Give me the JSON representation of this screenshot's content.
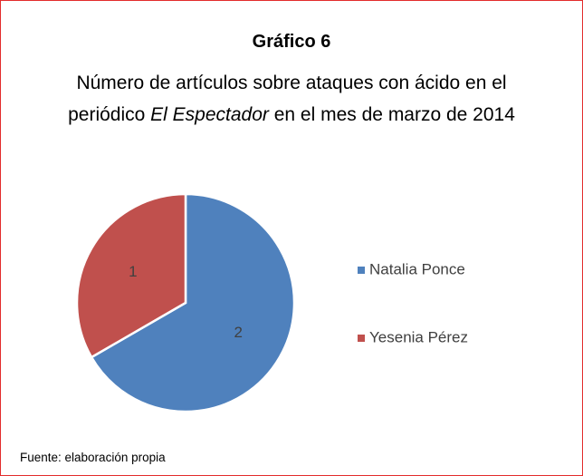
{
  "chart_data": {
    "type": "pie",
    "title": "Gráfico 6",
    "subtitle": [
      "Número de artículos sobre ataques con ácido en el periódico ",
      "El Espectador",
      " en el mes de marzo de 2014"
    ],
    "categories": [
      "Natalia Ponce",
      "Yesenia Pérez"
    ],
    "values": [
      2,
      1
    ],
    "colors": [
      "#4f81bd",
      "#c0504d"
    ],
    "legend": "right",
    "source": "Fuente: elaboración propia"
  }
}
